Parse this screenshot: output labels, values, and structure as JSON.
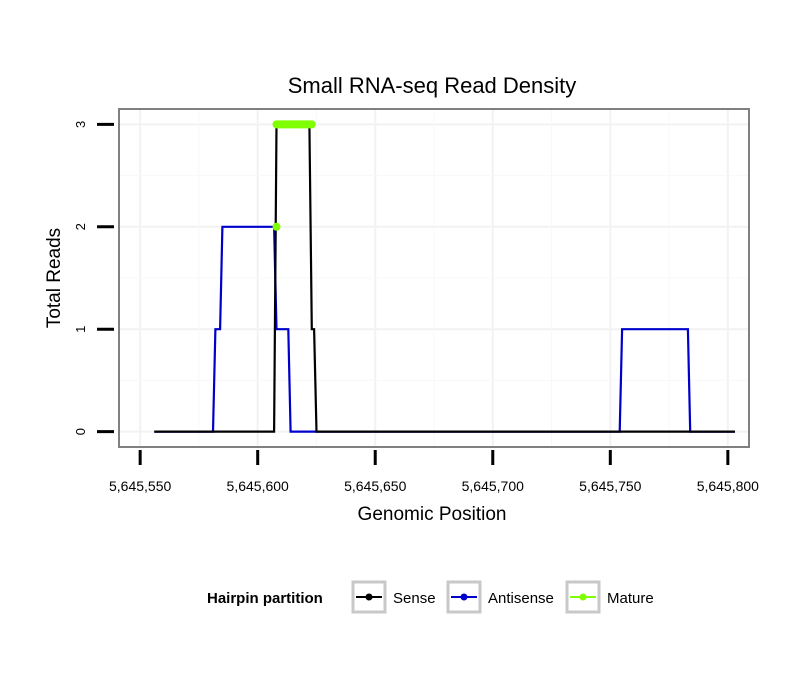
{
  "chart_data": {
    "type": "line",
    "title": "Small RNA-seq Read Density",
    "xlabel": "Genomic Position",
    "ylabel": "Total Reads",
    "xlim": [
      5645541,
      5645809
    ],
    "ylim": [
      -0.15,
      3.15
    ],
    "x_ticks": [
      5645550,
      5645600,
      5645650,
      5645700,
      5645750,
      5645800
    ],
    "x_tick_labels": [
      "5,645,550",
      "5,645,600",
      "5,645,650",
      "5,645,700",
      "5,645,750",
      "5,645,800"
    ],
    "y_ticks": [
      0,
      1,
      2,
      3
    ],
    "y_tick_labels": [
      "0",
      "1",
      "2",
      "3"
    ],
    "grid": true,
    "series": [
      {
        "name": "Sense",
        "color": "#000000",
        "x": [
          5645556,
          5645607,
          5645608,
          5645622,
          5645623,
          5645624,
          5645625,
          5645803
        ],
        "y": [
          0,
          0,
          3,
          3,
          1,
          1,
          0,
          0
        ]
      },
      {
        "name": "Antisense",
        "color": "#0000cc",
        "x": [
          5645556,
          5645581,
          5645582,
          5645584,
          5645585,
          5645607,
          5645608,
          5645613,
          5645614,
          5645754,
          5645755,
          5645783,
          5645784,
          5645803
        ],
        "y": [
          0,
          0,
          1,
          1,
          2,
          2,
          1,
          1,
          0,
          0,
          1,
          1,
          0,
          0
        ]
      },
      {
        "name": "Mature",
        "color": "#7fff00",
        "points": [
          {
            "x": 5645608,
            "y": 2
          }
        ],
        "segment": {
          "x": [
            5645608,
            5645623
          ],
          "y": [
            3,
            3
          ]
        }
      }
    ],
    "legend": {
      "title": "Hairpin partition",
      "entries": [
        "Sense",
        "Antisense",
        "Mature"
      ],
      "position": "bottom"
    }
  }
}
